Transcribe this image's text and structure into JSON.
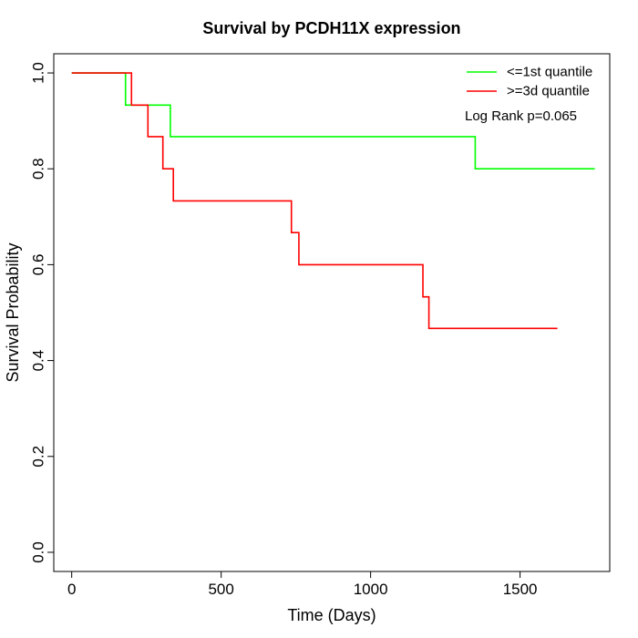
{
  "chart_data": {
    "type": "line",
    "title": "Survival by PCDH11X expression",
    "xlabel": "Time (Days)",
    "ylabel": "Survival Probability",
    "xlim": [
      -60,
      1800
    ],
    "ylim": [
      -0.04,
      1.04
    ],
    "xticks": [
      0,
      500,
      1000,
      1500
    ],
    "yticks": [
      0.0,
      0.2,
      0.4,
      0.6,
      0.8,
      1.0
    ],
    "ytick_labels": [
      "0.0",
      "0.2",
      "0.4",
      "0.6",
      "0.8",
      "1.0"
    ],
    "xtick_labels": [
      "0",
      "500",
      "1000",
      "1500"
    ],
    "step": true,
    "grid": false,
    "legend_position": "top-right",
    "annotation": "Log Rank p=0.065",
    "series": [
      {
        "name": "<=1st quantile",
        "color": "#00ff00",
        "x": [
          0,
          180,
          330,
          1350,
          1750
        ],
        "y": [
          1.0,
          0.933,
          0.867,
          0.8,
          0.8
        ]
      },
      {
        "name": ">=3d quantile",
        "color": "#ff0000",
        "x": [
          0,
          200,
          255,
          305,
          340,
          735,
          760,
          1175,
          1195,
          1625
        ],
        "y": [
          1.0,
          0.933,
          0.867,
          0.8,
          0.733,
          0.667,
          0.6,
          0.533,
          0.467,
          0.467
        ]
      }
    ]
  }
}
